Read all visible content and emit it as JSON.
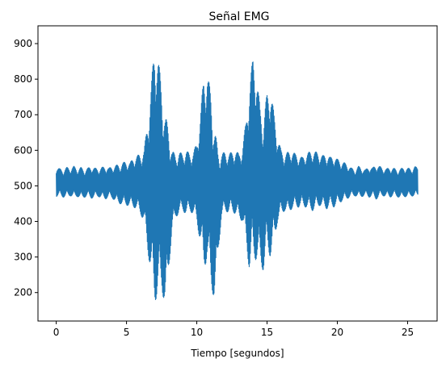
{
  "chart_data": {
    "type": "line",
    "title": "Señal EMG",
    "xlabel": "Tiempo [segundos]",
    "ylabel": "",
    "xlim": [
      -1.3,
      27.1
    ],
    "ylim": [
      120,
      950
    ],
    "x_ticks": [
      0,
      5,
      10,
      15,
      20,
      25
    ],
    "y_ticks": [
      200,
      300,
      400,
      500,
      600,
      700,
      800,
      900
    ],
    "x_tick_labels": [
      "0",
      "5",
      "10",
      "15",
      "20",
      "25"
    ],
    "y_tick_labels": [
      "200",
      "300",
      "400",
      "500",
      "600",
      "700",
      "800",
      "900"
    ],
    "grid": false,
    "legend": "none",
    "series": [
      {
        "color": "#1f77b4",
        "sample_interval": 0.25,
        "envelope_x": [
          0,
          0.25,
          0.5,
          0.75,
          1,
          1.25,
          1.5,
          1.75,
          2,
          2.25,
          2.5,
          2.75,
          3,
          3.25,
          3.5,
          3.75,
          4,
          4.25,
          4.5,
          4.75,
          5,
          5.25,
          5.5,
          5.75,
          6,
          6.25,
          6.5,
          6.75,
          7,
          7.25,
          7.5,
          7.75,
          8,
          8.25,
          8.5,
          8.75,
          9,
          9.25,
          9.5,
          9.75,
          10,
          10.25,
          10.5,
          10.75,
          11,
          11.25,
          11.5,
          11.75,
          12,
          12.25,
          12.5,
          12.75,
          13,
          13.25,
          13.5,
          13.75,
          14,
          14.25,
          14.5,
          14.75,
          15,
          15.25,
          15.5,
          15.75,
          16,
          16.25,
          16.5,
          16.75,
          17,
          17.25,
          17.5,
          17.75,
          18,
          18.25,
          18.5,
          18.75,
          19,
          19.25,
          19.5,
          19.75,
          20,
          20.25,
          20.5,
          20.75,
          21,
          21.25,
          21.5,
          21.75,
          22,
          22.25,
          22.5,
          22.75,
          23,
          23.25,
          23.5,
          23.75,
          24,
          24.25,
          24.5,
          24.75,
          25,
          25.25,
          25.5,
          25.75
        ],
        "upper": [
          555,
          548,
          545,
          552,
          550,
          555,
          548,
          552,
          545,
          550,
          555,
          550,
          548,
          552,
          555,
          550,
          555,
          558,
          560,
          565,
          570,
          565,
          580,
          585,
          590,
          600,
          680,
          780,
          900,
          860,
          780,
          700,
          660,
          600,
          585,
          595,
          590,
          600,
          590,
          595,
          620,
          700,
          810,
          820,
          760,
          670,
          600,
          590,
          595,
          590,
          595,
          600,
          590,
          610,
          680,
          790,
          860,
          820,
          720,
          690,
          760,
          780,
          700,
          640,
          600,
          590,
          595,
          600,
          590,
          585,
          580,
          590,
          595,
          600,
          595,
          590,
          585,
          590,
          580,
          585,
          575,
          570,
          565,
          560,
          550,
          545,
          555,
          550,
          545,
          555,
          550,
          560,
          555,
          550,
          548,
          552,
          550,
          545,
          548,
          552,
          550,
          548,
          555,
          550
        ],
        "lower": [
          470,
          472,
          468,
          470,
          472,
          468,
          470,
          465,
          468,
          470,
          465,
          468,
          470,
          465,
          463,
          468,
          465,
          455,
          450,
          448,
          445,
          445,
          440,
          435,
          420,
          400,
          320,
          250,
          170,
          200,
          210,
          160,
          260,
          380,
          410,
          425,
          430,
          420,
          430,
          420,
          400,
          340,
          260,
          300,
          220,
          180,
          300,
          410,
          430,
          425,
          430,
          420,
          410,
          400,
          340,
          260,
          300,
          290,
          280,
          260,
          320,
          300,
          340,
          400,
          420,
          430,
          425,
          435,
          440,
          440,
          445,
          440,
          435,
          430,
          440,
          445,
          440,
          435,
          445,
          440,
          450,
          455,
          460,
          465,
          470,
          472,
          468,
          470,
          472,
          468,
          470,
          462,
          470,
          472,
          470,
          468,
          472,
          470,
          465,
          470,
          468,
          472,
          470,
          472
        ]
      }
    ]
  }
}
